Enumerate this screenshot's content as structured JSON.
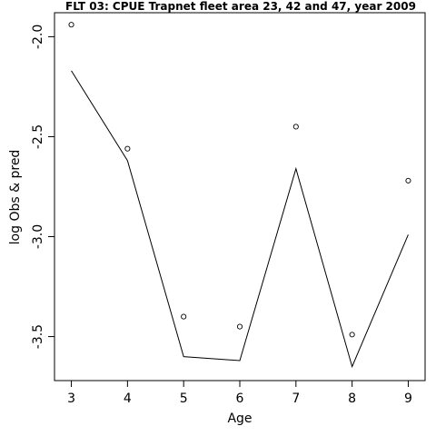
{
  "chart_data": {
    "type": "line",
    "title": "FLT 03: CPUE Trapnet fleet area 23, 42 and 47, year 2009",
    "xlabel": "Age",
    "ylabel": "log Obs & pred",
    "x": [
      3,
      4,
      5,
      6,
      7,
      8,
      9
    ],
    "xlim": [
      2.7,
      9.3
    ],
    "ylim": [
      -3.72,
      -1.88
    ],
    "x_ticks": [
      "3",
      "4",
      "5",
      "6",
      "7",
      "8",
      "9"
    ],
    "y_ticks": [
      {
        "value": -2.0,
        "label": "-2.0"
      },
      {
        "value": -2.5,
        "label": "-2.5"
      },
      {
        "value": -3.0,
        "label": "-3.0"
      },
      {
        "value": -3.5,
        "label": "-3.5"
      }
    ],
    "series": [
      {
        "kind": "observed",
        "style": "points",
        "values": [
          -1.94,
          -2.56,
          -3.4,
          -3.45,
          -2.45,
          -3.49,
          -2.72
        ]
      },
      {
        "kind": "predicted",
        "style": "line",
        "values": [
          -2.17,
          -2.62,
          -3.6,
          -3.62,
          -2.66,
          -3.65,
          -2.99
        ]
      }
    ],
    "grid": false,
    "colors": {
      "line": "#000000",
      "points": "#000000",
      "frame": "#000000"
    }
  }
}
